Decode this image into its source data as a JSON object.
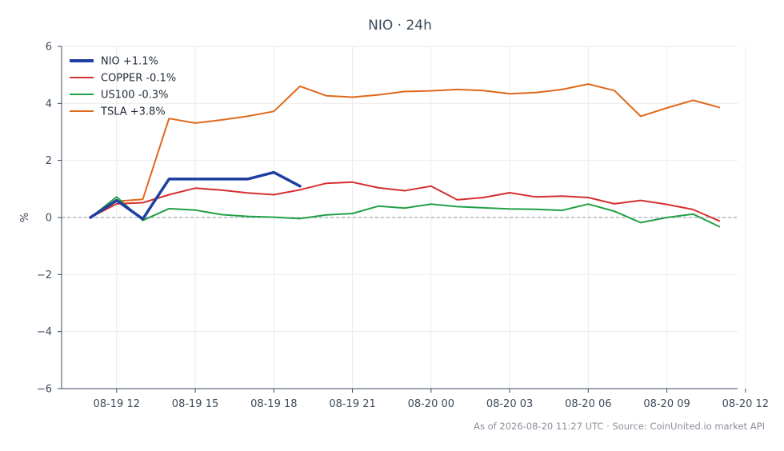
{
  "chart_data": {
    "type": "line",
    "title": "NIO · 24h",
    "xlabel": "",
    "ylabel": "%",
    "ylim": [
      -6,
      6
    ],
    "yticks": [
      6,
      4,
      2,
      0,
      -2,
      -4,
      -6
    ],
    "ytick_labels": [
      "6",
      "4",
      "2",
      "0",
      "−2",
      "−4",
      "−6"
    ],
    "xlim": [
      -1.1,
      24.7
    ],
    "xticks": [
      1,
      4,
      7,
      10,
      13,
      16,
      19,
      22,
      25
    ],
    "xtick_labels": [
      "08-19 12",
      "08-19 15",
      "08-19 18",
      "08-19 21",
      "08-20 00",
      "08-20 03",
      "08-20 06",
      "08-20 09",
      "08-20 12"
    ],
    "grid": true,
    "zero_line": true,
    "legend_position": "top-left",
    "series": [
      {
        "name": "NIO +1.1%",
        "color": "#1f3fa0",
        "x": [
          0,
          1,
          2,
          3,
          4,
          5,
          6,
          7,
          8
        ],
        "values": [
          0,
          0.6,
          -0.05,
          1.35,
          1.35,
          1.35,
          1.35,
          1.58,
          1.1
        ]
      },
      {
        "name": "COPPER -0.1%",
        "color": "#d62f2f",
        "x": [
          0,
          1,
          2,
          3,
          4,
          5,
          6,
          7,
          8,
          9,
          10,
          11,
          12,
          13,
          14,
          15,
          16,
          17,
          18,
          19,
          20,
          21,
          22,
          23,
          24
        ],
        "values": [
          0,
          0.48,
          0.52,
          0.8,
          1.03,
          0.96,
          0.86,
          0.8,
          0.97,
          1.2,
          1.24,
          1.04,
          0.94,
          1.1,
          0.62,
          0.7,
          0.87,
          0.72,
          0.75,
          0.7,
          0.48,
          0.6,
          0.46,
          0.28,
          -0.12
        ]
      },
      {
        "name": "US100 -0.3%",
        "color": "#22a046",
        "x": [
          0,
          1,
          2,
          3,
          4,
          5,
          6,
          7,
          8,
          9,
          10,
          11,
          12,
          13,
          14,
          15,
          16,
          17,
          18,
          19,
          20,
          21,
          22,
          23,
          24
        ],
        "values": [
          0,
          0.72,
          -0.1,
          0.31,
          0.26,
          0.1,
          0.04,
          0.01,
          -0.04,
          0.09,
          0.14,
          0.4,
          0.33,
          0.47,
          0.38,
          0.34,
          0.3,
          0.29,
          0.25,
          0.47,
          0.22,
          -0.18,
          0.0,
          0.12,
          -0.32
        ]
      },
      {
        "name": "TSLA +3.8%",
        "color": "#e0681a",
        "x": [
          0,
          1,
          2,
          3,
          4,
          5,
          6,
          7,
          8,
          9,
          10,
          11,
          12,
          13,
          14,
          15,
          16,
          17,
          18,
          19,
          20,
          21,
          22,
          23,
          24
        ],
        "values": [
          0,
          0.57,
          0.64,
          3.47,
          3.31,
          3.42,
          3.55,
          3.72,
          4.6,
          4.27,
          4.22,
          4.3,
          4.42,
          4.44,
          4.49,
          4.45,
          4.34,
          4.38,
          4.49,
          4.68,
          4.45,
          3.55,
          3.84,
          4.11,
          3.86
        ]
      }
    ]
  },
  "footer": {
    "text": "As of 2026-08-20 11:27 UTC · Source: CoinUnited.io market API"
  }
}
